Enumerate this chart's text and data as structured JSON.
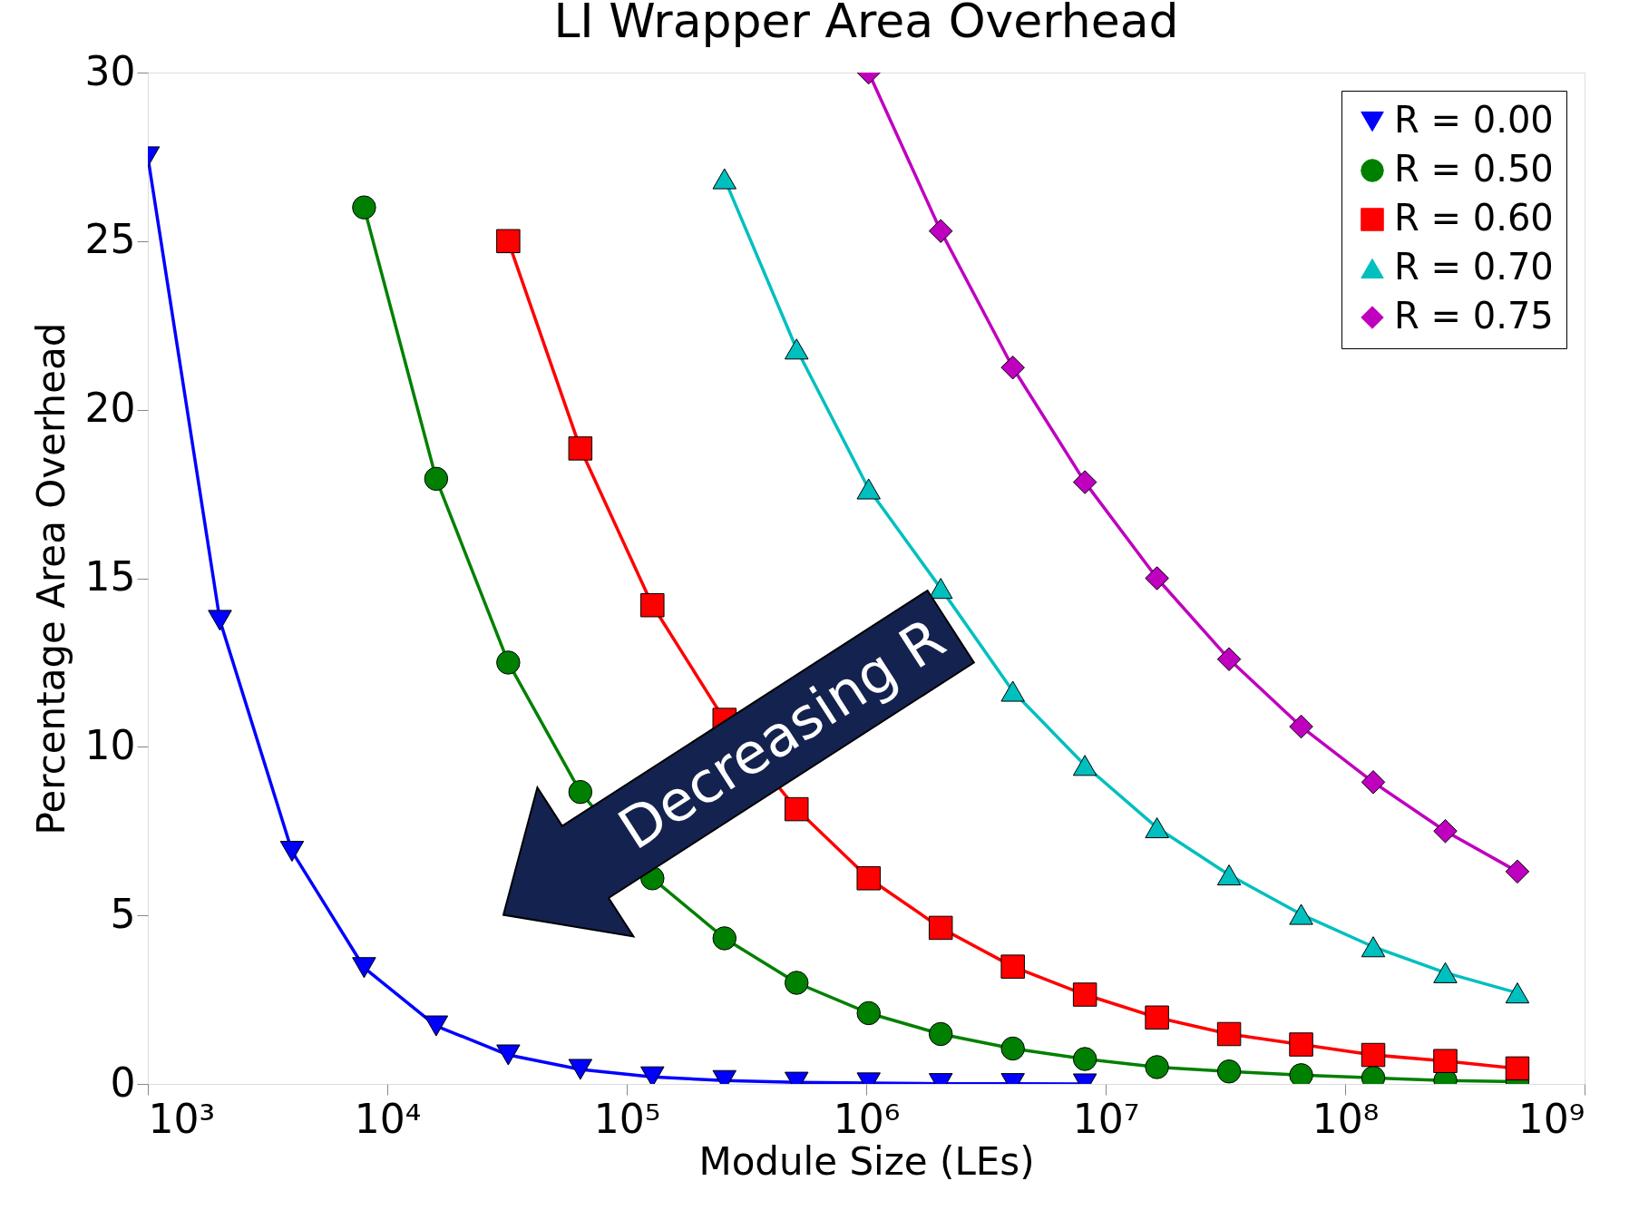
{
  "chart_data": {
    "type": "line",
    "title": "LI Wrapper Area Overhead",
    "xlabel": "Module Size (LEs)",
    "ylabel": "Percentage Area Overhead",
    "log": "x",
    "xlim": [
      1000,
      1000000000
    ],
    "xticks": [
      {
        "value": 1000,
        "label": "10³"
      },
      {
        "value": 10000,
        "label": "10⁴"
      },
      {
        "value": 100000,
        "label": "10⁵"
      },
      {
        "value": 1000000,
        "label": "10⁶"
      },
      {
        "value": 10000000,
        "label": "10⁷"
      },
      {
        "value": 100000000,
        "label": "10⁸"
      },
      {
        "value": 1000000000,
        "label": "10⁹"
      }
    ],
    "ylim": [
      0,
      30
    ],
    "yticks": [
      0,
      5,
      10,
      15,
      20,
      25,
      30
    ],
    "grid": false,
    "legend": "top right",
    "line_style": "solid",
    "annotations": [
      "Decreasing R"
    ],
    "series": [
      {
        "name": "R = 0.00",
        "color": "#0000ff",
        "marker": "triangle-down",
        "x": [
          1000,
          2000,
          4000,
          8000,
          16000,
          32000,
          64000,
          128000,
          256000,
          512000,
          1024000,
          2048000,
          4096000,
          8192000
        ],
        "values": [
          27.5,
          13.75,
          6.9,
          3.45,
          1.72,
          0.86,
          0.43,
          0.21,
          0.1,
          0.05,
          0.03,
          0.01,
          0.01,
          0.0
        ]
      },
      {
        "name": "R = 0.50",
        "color": "#008000",
        "marker": "circle",
        "x": [
          8000,
          16000,
          32000,
          64000,
          128000,
          256000,
          512000,
          1024000,
          2048000,
          4096000,
          8192000,
          16384000,
          32768000,
          65536000,
          131072000,
          262144000,
          524288000
        ],
        "values": [
          26.0,
          17.95,
          12.5,
          8.66,
          6.1,
          4.32,
          3.0,
          2.1,
          1.48,
          1.05,
          0.74,
          0.5,
          0.37,
          0.26,
          0.18,
          0.1,
          0.07
        ]
      },
      {
        "name": "R = 0.60",
        "color": "#ff0000",
        "marker": "square",
        "x": [
          32000,
          64000,
          128000,
          256000,
          512000,
          1024000,
          2048000,
          4096000,
          8192000,
          16384000,
          32768000,
          65536000,
          131072000,
          262144000,
          524288000
        ],
        "values": [
          25.0,
          18.85,
          14.2,
          10.8,
          8.15,
          6.1,
          4.63,
          3.48,
          2.65,
          1.97,
          1.48,
          1.17,
          0.86,
          0.68,
          0.46
        ]
      },
      {
        "name": "R = 0.70",
        "color": "#00bfbf",
        "marker": "triangle",
        "x": [
          256000,
          512000,
          1024000,
          2048000,
          4096000,
          8192000,
          16384000,
          32768000,
          65536000,
          131072000,
          262144000,
          524288000
        ],
        "values": [
          26.85,
          21.8,
          17.65,
          14.7,
          11.65,
          9.45,
          7.6,
          6.2,
          5.03,
          4.07,
          3.3,
          2.7
        ]
      },
      {
        "name": "R = 0.75",
        "color": "#bf00bf",
        "marker": "diamond",
        "x": [
          1024000,
          2048000,
          4096000,
          8192000,
          16384000,
          32768000,
          65536000,
          131072000,
          262144000,
          524288000
        ],
        "values": [
          30.0,
          25.3,
          21.25,
          17.85,
          15.0,
          12.6,
          10.6,
          8.95,
          7.5,
          6.3
        ]
      }
    ]
  }
}
